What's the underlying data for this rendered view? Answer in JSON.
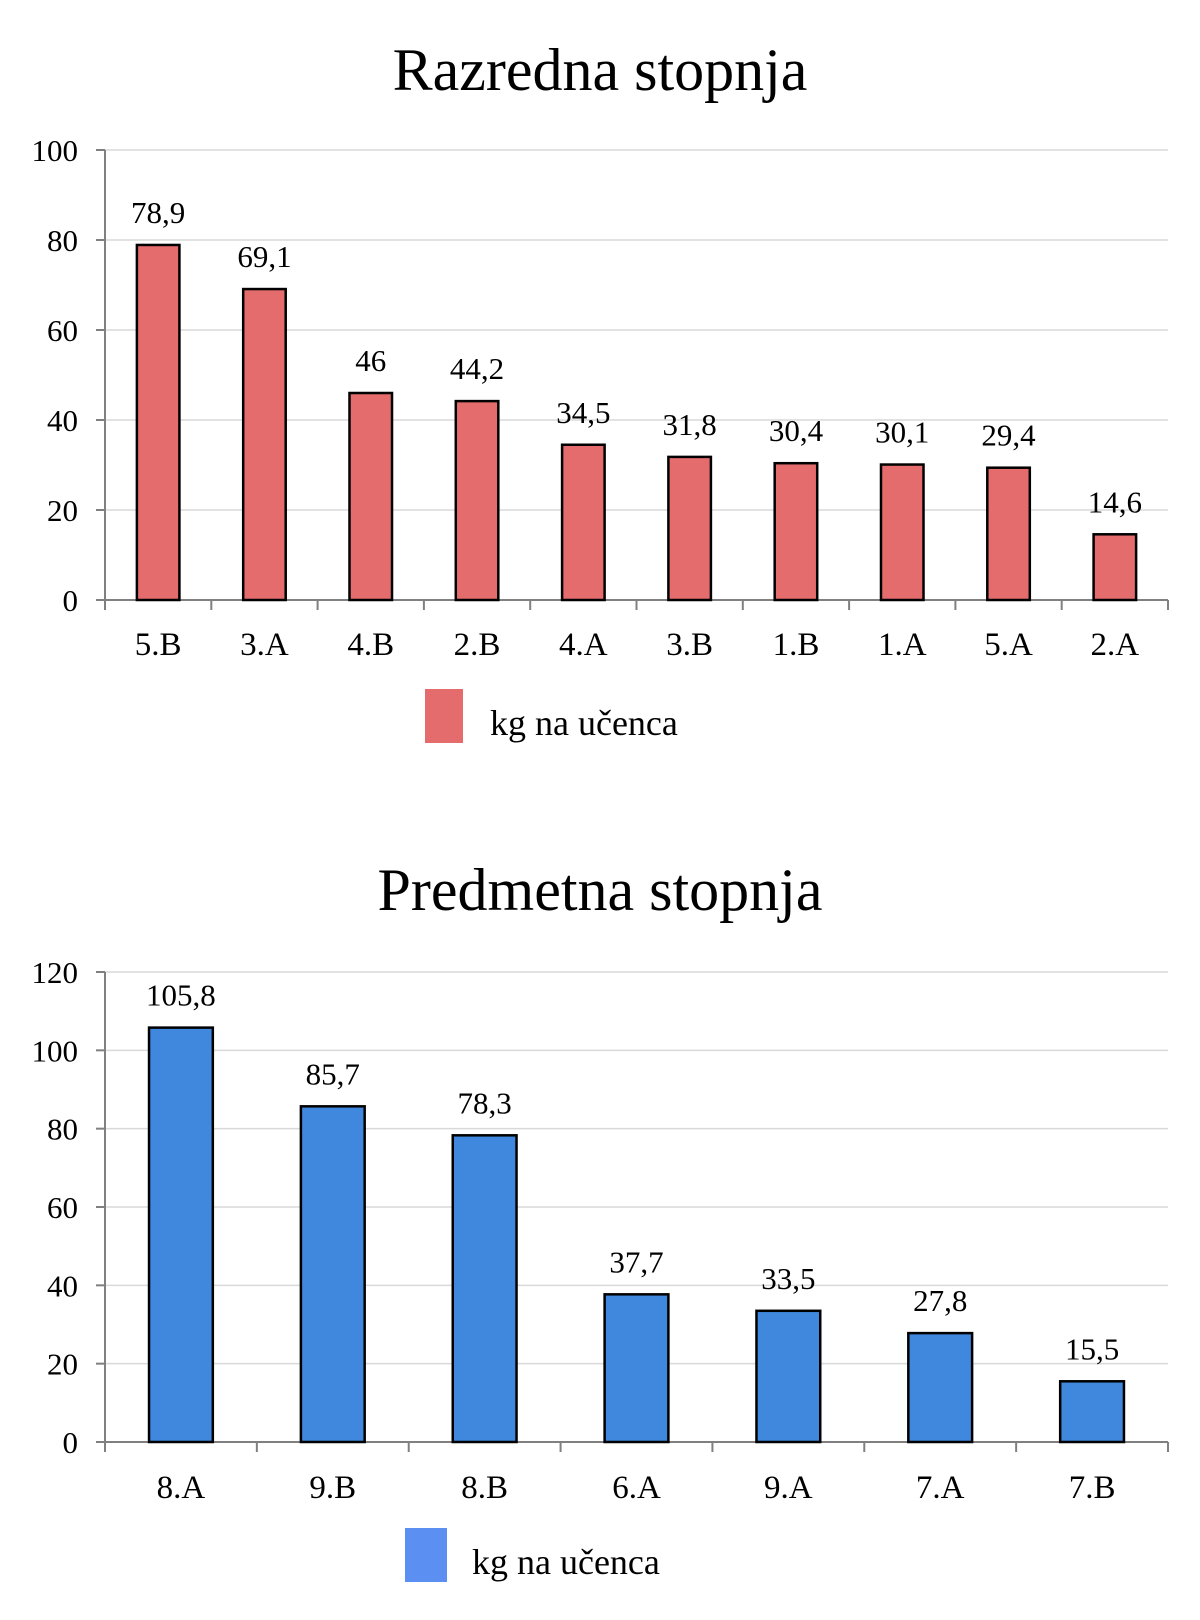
{
  "chart_data": [
    {
      "type": "bar",
      "title": "Razredna stopnja",
      "categories": [
        "5.B",
        "3.A",
        "4.B",
        "2.B",
        "4.A",
        "3.B",
        "1.B",
        "1.A",
        "5.A",
        "2.A"
      ],
      "series": [
        {
          "name": "kg na učenca",
          "values": [
            78.9,
            69.1,
            46,
            44.2,
            34.5,
            31.8,
            30.4,
            30.1,
            29.4,
            14.6
          ],
          "labels": [
            "78,9",
            "69,1",
            "46",
            "44,2",
            "34,5",
            "31,8",
            "30,4",
            "30,1",
            "29,4",
            "14,6"
          ]
        }
      ],
      "ylim": [
        0,
        100
      ],
      "yticks": [
        0,
        20,
        40,
        60,
        80,
        100
      ],
      "grid": true,
      "legend": "bottom",
      "color": "#e46c6c"
    },
    {
      "type": "bar",
      "title": "Predmetna stopnja",
      "categories": [
        "8.A",
        "9.B",
        "8.B",
        "6.A",
        "9.A",
        "7.A",
        "7.B"
      ],
      "series": [
        {
          "name": "kg na učenca",
          "values": [
            105.8,
            85.7,
            78.3,
            37.7,
            33.5,
            27.8,
            15.5
          ],
          "labels": [
            "105,8",
            "85,7",
            "78,3",
            "37,7",
            "33,5",
            "27,8",
            "15,5"
          ]
        }
      ],
      "ylim": [
        0,
        120
      ],
      "yticks": [
        0,
        20,
        40,
        60,
        80,
        100,
        120
      ],
      "grid": true,
      "legend": "bottom",
      "color": "#3f88de"
    }
  ]
}
